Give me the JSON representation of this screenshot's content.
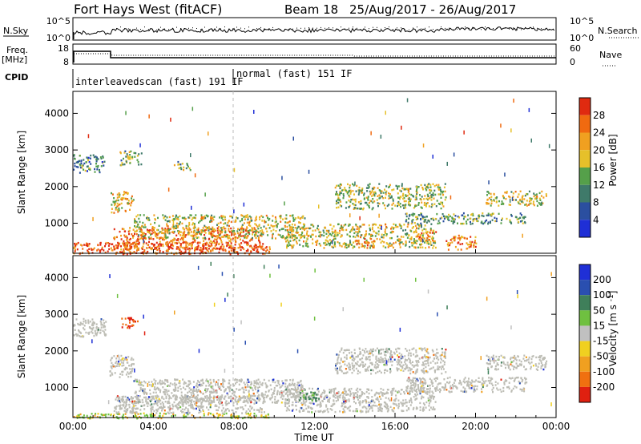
{
  "header": {
    "title": "Fort Hays West (fitACF)",
    "beam": "Beam 18",
    "date_range": "25/Aug/2017 - 26/Aug/2017"
  },
  "noise_panel": {
    "left_label": "N.Sky",
    "right_label": "N.Search",
    "left_ticks": [
      "10^5",
      "10^0"
    ],
    "right_ticks": [
      "10^5",
      "10^0"
    ]
  },
  "freq_panel": {
    "left_label_1": "Freq.",
    "left_label_2": "[MHz]",
    "right_label": "Nave",
    "left_ticks": [
      "18",
      "8"
    ],
    "right_ticks": [
      "60",
      "0"
    ]
  },
  "cpid_panel": {
    "label": "CPID",
    "modes": [
      {
        "text": "interleavedscan (fast) 191 IF",
        "start_hour": 0
      },
      {
        "text": "normal (fast) 151 IF",
        "start_hour": 8
      }
    ]
  },
  "colors": {
    "power_scale": [
      "#1f2fd6",
      "#2b4fa0",
      "#3f7a6a",
      "#55a04a",
      "#e6c02a",
      "#f0a020",
      "#f06a10",
      "#e02a10"
    ],
    "velocity_scale": [
      "#1f2fd6",
      "#2a4fb0",
      "#3f7f5a",
      "#6fc040",
      "#c0c0c0",
      "#f0d020",
      "#f0a020",
      "#f07010",
      "#e02010"
    ],
    "ground_scatter": "#bdbdb5"
  },
  "chart_data": [
    {
      "type": "heatmap",
      "panel": "power",
      "ylabel": "Slant Range [km]",
      "xlabel": "Time UT",
      "x_ticks": [
        "00:00",
        "04:00",
        "08:00",
        "12:00",
        "16:00",
        "20:00",
        "00:00"
      ],
      "xlim_hours": [
        0,
        24
      ],
      "y_ticks": [
        1000,
        2000,
        3000,
        4000
      ],
      "ylim": [
        180,
        4600
      ],
      "colorbar": {
        "label": "Power [dB]",
        "ticks": [
          4,
          8,
          12,
          16,
          20,
          24,
          28
        ],
        "range": [
          0,
          32
        ]
      },
      "regions": [
        {
          "t": [
            0.0,
            9.8
          ],
          "r": [
            180,
            500
          ],
          "level": 28
        },
        {
          "t": [
            2.0,
            9.3
          ],
          "r": [
            300,
            900
          ],
          "level": 26
        },
        {
          "t": [
            3.0,
            11.5
          ],
          "r": [
            600,
            1250
          ],
          "level": 18
        },
        {
          "t": [
            1.8,
            3.0
          ],
          "r": [
            1300,
            1900
          ],
          "level": 20
        },
        {
          "t": [
            0.0,
            1.6
          ],
          "r": [
            2400,
            2900
          ],
          "level": 10
        },
        {
          "t": [
            2.3,
            3.4
          ],
          "r": [
            2600,
            3000
          ],
          "level": 14
        },
        {
          "t": [
            5.0,
            5.8
          ],
          "r": [
            2450,
            2700
          ],
          "level": 14
        },
        {
          "t": [
            10.5,
            18.0
          ],
          "r": [
            350,
            1000
          ],
          "level": 18
        },
        {
          "t": [
            13.0,
            18.5
          ],
          "r": [
            1400,
            2100
          ],
          "level": 16
        },
        {
          "t": [
            16.5,
            22.5
          ],
          "r": [
            1000,
            1300
          ],
          "level": 12
        },
        {
          "t": [
            18.5,
            20.0
          ],
          "r": [
            300,
            700
          ],
          "level": 24
        },
        {
          "t": [
            20.5,
            23.5
          ],
          "r": [
            1500,
            1900
          ],
          "level": 18
        },
        {
          "t": [
            14.0,
            15.0
          ],
          "r": [
            350,
            600
          ],
          "level": 26
        },
        {
          "t": [
            17.0,
            18.0
          ],
          "r": [
            500,
            800
          ],
          "level": 24
        }
      ]
    },
    {
      "type": "heatmap",
      "panel": "velocity",
      "ylabel": "Slant Range [km]",
      "xlabel": "Time UT",
      "x_ticks": [
        "00:00",
        "04:00",
        "08:00",
        "12:00",
        "16:00",
        "20:00",
        "00:00"
      ],
      "xlim_hours": [
        0,
        24
      ],
      "y_ticks": [
        1000,
        2000,
        3000,
        4000
      ],
      "ylim": [
        180,
        4600
      ],
      "colorbar": {
        "label": "Velocity [m s^-1]",
        "ticks": [
          "200",
          "100",
          "50",
          "15",
          "-15",
          "-50",
          "-100",
          "-200"
        ]
      },
      "regions": [
        {
          "t": [
            0.0,
            9.8
          ],
          "r": [
            180,
            320
          ],
          "kind": "positive"
        },
        {
          "t": [
            2.0,
            9.5
          ],
          "r": [
            320,
            800
          ],
          "kind": "ground"
        },
        {
          "t": [
            3.0,
            11.5
          ],
          "r": [
            600,
            1250
          ],
          "kind": "ground"
        },
        {
          "t": [
            1.8,
            3.0
          ],
          "r": [
            1300,
            1900
          ],
          "kind": "ground"
        },
        {
          "t": [
            0.0,
            1.6
          ],
          "r": [
            2400,
            2900
          ],
          "kind": "ground"
        },
        {
          "t": [
            2.4,
            3.2
          ],
          "r": [
            2650,
            2950
          ],
          "kind": "negative"
        },
        {
          "t": [
            10.5,
            18.0
          ],
          "r": [
            350,
            1000
          ],
          "kind": "ground"
        },
        {
          "t": [
            13.0,
            18.5
          ],
          "r": [
            1400,
            2100
          ],
          "kind": "ground"
        },
        {
          "t": [
            16.5,
            22.5
          ],
          "r": [
            900,
            1300
          ],
          "kind": "ground"
        },
        {
          "t": [
            20.5,
            23.5
          ],
          "r": [
            1500,
            1900
          ],
          "kind": "ground"
        },
        {
          "t": [
            11.2,
            12.2
          ],
          "r": [
            650,
            900
          ],
          "kind": "positive-dark"
        }
      ]
    }
  ]
}
